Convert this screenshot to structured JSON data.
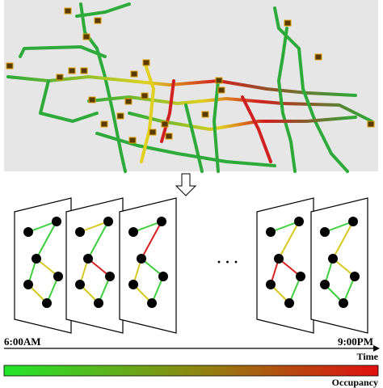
{
  "time_axis": {
    "start": "6:00AM",
    "end": "9:00PM",
    "label": "Time"
  },
  "colorbar": {
    "label": "Occupancy"
  },
  "ellipsis": "· · ·"
}
